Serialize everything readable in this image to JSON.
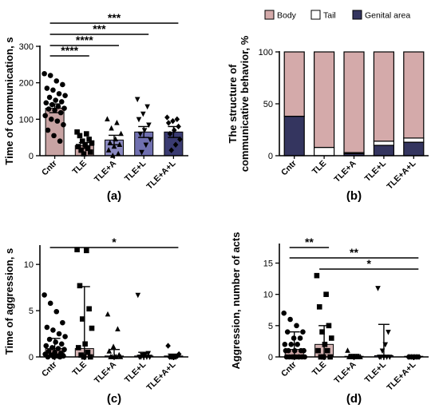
{
  "chart_data": [
    {
      "panel": "(a)",
      "type": "bar",
      "ylabel": "Time of communication, s",
      "ylim": [
        0,
        300
      ],
      "yticks": [
        0,
        100,
        200,
        300
      ],
      "categories": [
        "Cntr",
        "TLE",
        "TLE+A",
        "TLE+L",
        "TLE+A+L"
      ],
      "values": [
        130,
        28,
        43,
        65,
        65
      ],
      "errors": [
        12,
        8,
        13,
        15,
        15
      ],
      "bar_colors": [
        "#c8a3a3",
        "#c8a3a3",
        "#8a89c0",
        "#7070b0",
        "#3a3b72"
      ],
      "points": [
        [
          225,
          220,
          205,
          195,
          185,
          180,
          170,
          165,
          160,
          152,
          148,
          145,
          140,
          135,
          130,
          128,
          125,
          118,
          110,
          100,
          95,
          85,
          70,
          55,
          40
        ],
        [
          65,
          60,
          55,
          45,
          40,
          35,
          30,
          25,
          20,
          15,
          10,
          5
        ],
        [
          100,
          90,
          75,
          60,
          45,
          35,
          30,
          25,
          15,
          5,
          0
        ],
        [
          155,
          135,
          115,
          100,
          85,
          70,
          60,
          45,
          30,
          10
        ],
        [
          105,
          100,
          95,
          90,
          80,
          70,
          60,
          45,
          30,
          15
        ]
      ],
      "markers": [
        "circle",
        "square",
        "triangle-up",
        "triangle-down",
        "diamond"
      ],
      "significance": [
        {
          "from": 0,
          "to": 1,
          "label": "****"
        },
        {
          "from": 0,
          "to": 2,
          "label": "****"
        },
        {
          "from": 0,
          "to": 3,
          "label": "***"
        },
        {
          "from": 0,
          "to": 4,
          "label": "***"
        }
      ]
    },
    {
      "panel": "(b)",
      "type": "bar",
      "ylabel": "The structure of communicative behavior, %",
      "ylim": [
        0,
        100
      ],
      "yticks": [
        0,
        50,
        100
      ],
      "categories": [
        "Cntr",
        "TLE",
        "TLE+A",
        "TLE+L",
        "TLE+A+L"
      ],
      "legend": [
        "Body",
        "Tail",
        "Genital area"
      ],
      "legend_position": "top",
      "series": [
        {
          "name": "Genital area",
          "color": "#34355f",
          "values": [
            38,
            0,
            2,
            10,
            13
          ]
        },
        {
          "name": "Tail",
          "color": "#ffffff",
          "values": [
            0,
            8,
            1,
            4,
            4
          ]
        },
        {
          "name": "Body",
          "color": "#d4aaaa",
          "values": [
            62,
            92,
            97,
            86,
            83
          ]
        }
      ]
    },
    {
      "panel": "(c)",
      "type": "bar",
      "ylabel": "Time of aggression, s",
      "ylim": [
        0,
        12
      ],
      "yticks": [
        0,
        5,
        10
      ],
      "categories": [
        "Cntr",
        "TLE",
        "TLE+A",
        "TLE+L",
        "TLE+A+L"
      ],
      "values": [
        0.9,
        0.9,
        0.1,
        0.1,
        0.1
      ],
      "error_low": [
        0,
        0,
        0,
        0,
        0
      ],
      "error_high": [
        2.0,
        7.6,
        0.8,
        0.5,
        0.3
      ],
      "bar_colors": [
        "#c8a3a3",
        "#d4b3b3",
        "#8a89c0",
        "#7070b0",
        "#3a3b72"
      ],
      "points": [
        [
          6.7,
          5.8,
          4.9,
          3.7,
          3.2,
          2.9,
          2.5,
          2.2,
          1.9,
          1.6,
          1.4,
          1.2,
          1.0,
          0.9,
          0.8,
          0.6,
          0.5,
          0.4,
          0.3,
          0.2,
          0.1,
          0.1,
          0.0,
          0.0,
          0.0
        ],
        [
          11.6,
          11.5,
          7.7,
          5.2,
          4.1,
          3.1,
          1.4,
          1.0,
          0.5,
          0.2,
          0.0,
          0.0
        ],
        [
          4.6,
          3.0,
          1.1,
          0.6,
          0.2,
          0.0,
          0.0,
          0.0,
          0.0,
          0.0
        ],
        [
          6.7,
          0.4,
          0.3,
          0.2,
          0.0,
          0.0,
          0.0,
          0.0,
          0.0
        ],
        [
          1.2,
          0.3,
          0.1,
          0.0,
          0.0,
          0.0,
          0.0,
          0.0
        ]
      ],
      "markers": [
        "circle",
        "square",
        "triangle-up",
        "triangle-down",
        "diamond"
      ],
      "significance": [
        {
          "from": 0,
          "to": 4,
          "label": "*"
        }
      ]
    },
    {
      "panel": "(d)",
      "type": "bar",
      "ylabel": "Aggression, number of acts",
      "ylim": [
        0,
        18
      ],
      "yticks": [
        0,
        5,
        10,
        15
      ],
      "categories": [
        "Cntr",
        "TLE",
        "TLE+A",
        "TLE+L",
        "TLE+A+L"
      ],
      "values": [
        1.2,
        2.0,
        0.1,
        0.2,
        0.1
      ],
      "error_low": [
        0,
        0,
        0,
        0,
        0
      ],
      "error_high": [
        4.0,
        5.0,
        0.4,
        5.2,
        0.1
      ],
      "bar_colors": [
        "#c8a3a3",
        "#d4b3b3",
        "#8a89c0",
        "#7070b0",
        "#3a3b72"
      ],
      "points": [
        [
          7,
          6,
          5,
          4,
          4,
          3,
          3,
          2,
          2,
          2,
          1,
          1,
          1,
          1,
          1,
          0,
          0,
          0,
          0,
          0,
          0,
          0,
          0,
          0
        ],
        [
          13,
          10,
          8,
          5,
          4,
          3,
          2,
          1,
          1,
          0,
          0,
          0
        ],
        [
          1,
          0,
          0,
          0,
          0,
          0,
          0,
          0,
          0,
          0
        ],
        [
          11,
          4,
          2,
          1,
          0,
          0,
          0,
          0,
          0
        ],
        [
          0,
          0,
          0,
          0,
          0,
          0,
          0,
          0
        ]
      ],
      "markers": [
        "circle",
        "square",
        "triangle-up",
        "triangle-down",
        "diamond"
      ],
      "significance": [
        {
          "from": 0,
          "to": 4,
          "label": "**"
        },
        {
          "from": 0,
          "to": 1,
          "label": "**"
        },
        {
          "from": 1,
          "to": 4,
          "label": "*"
        }
      ]
    }
  ]
}
